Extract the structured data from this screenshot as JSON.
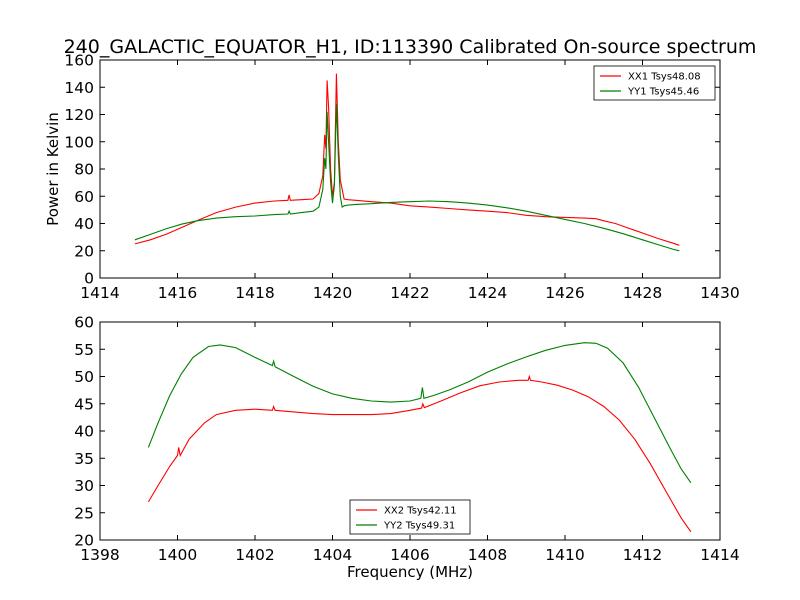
{
  "figure": {
    "title": "240_GALACTIC_EQUATOR_H1, ID:113390 Calibrated On-source spectrum"
  },
  "chart_data": [
    {
      "type": "line",
      "ylabel": "Power in Kelvin",
      "xlabel": "",
      "xlim": [
        1414,
        1430
      ],
      "ylim": [
        0,
        160
      ],
      "xticks": [
        1414,
        1416,
        1418,
        1420,
        1422,
        1424,
        1426,
        1428,
        1430
      ],
      "yticks": [
        0,
        20,
        40,
        60,
        80,
        100,
        120,
        140,
        160
      ],
      "legend_position": "top-right",
      "grid": false,
      "series": [
        {
          "name": "XX1 Tsys48.08",
          "color": "#ff0000",
          "x": [
            1414.9,
            1415.3,
            1415.7,
            1416.1,
            1416.5,
            1417.0,
            1417.5,
            1418.0,
            1418.5,
            1418.85,
            1418.88,
            1418.91,
            1419.2,
            1419.5,
            1419.65,
            1419.75,
            1419.8,
            1419.83,
            1419.86,
            1419.9,
            1419.95,
            1420.0,
            1420.05,
            1420.1,
            1420.15,
            1420.2,
            1420.25,
            1420.3,
            1420.4,
            1420.6,
            1421.0,
            1421.5,
            1422.0,
            1422.5,
            1423.0,
            1423.5,
            1424.0,
            1424.5,
            1425.0,
            1425.5,
            1426.0,
            1426.5,
            1426.8,
            1427.0,
            1427.3,
            1427.6,
            1428.0,
            1428.4,
            1428.8,
            1428.95
          ],
          "y": [
            25,
            28,
            32,
            37,
            42,
            48,
            52,
            55,
            56.5,
            57,
            61,
            57,
            57.5,
            58,
            62,
            75,
            105,
            95,
            145,
            125,
            80,
            60,
            70,
            150,
            100,
            72,
            65,
            58,
            57.5,
            57,
            56,
            55,
            53,
            52,
            51,
            50,
            49,
            48,
            46,
            45,
            44.5,
            44,
            43.5,
            42,
            40,
            37,
            33,
            29,
            25.5,
            24
          ]
        },
        {
          "name": "YY1 Tsys45.46",
          "color": "#008000",
          "x": [
            1414.9,
            1415.3,
            1415.7,
            1416.1,
            1416.5,
            1417.0,
            1417.5,
            1418.0,
            1418.5,
            1418.85,
            1418.88,
            1418.91,
            1419.2,
            1419.5,
            1419.65,
            1419.75,
            1419.8,
            1419.83,
            1419.86,
            1419.9,
            1419.95,
            1420.0,
            1420.05,
            1420.1,
            1420.15,
            1420.2,
            1420.25,
            1420.3,
            1420.4,
            1420.6,
            1421.0,
            1421.5,
            1422.0,
            1422.5,
            1423.0,
            1423.5,
            1424.0,
            1424.5,
            1425.0,
            1425.5,
            1426.0,
            1426.5,
            1427.0,
            1427.5,
            1428.0,
            1428.4,
            1428.8,
            1428.95
          ],
          "y": [
            28,
            32,
            36,
            39.5,
            42,
            44,
            45,
            45.5,
            46.5,
            47,
            49,
            47,
            48,
            49,
            52,
            65,
            88,
            80,
            122,
            100,
            70,
            55,
            68,
            128,
            90,
            60,
            52,
            53,
            53.5,
            54,
            54.5,
            55.5,
            56,
            56.5,
            56,
            55,
            53.5,
            51.5,
            49,
            46,
            43,
            40,
            36.5,
            32.5,
            28,
            24.5,
            21,
            20
          ]
        }
      ]
    },
    {
      "type": "line",
      "ylabel": "",
      "xlabel": "Frequency (MHz)",
      "xlim": [
        1398,
        1414
      ],
      "ylim": [
        20,
        60
      ],
      "xticks": [
        1398,
        1400,
        1402,
        1404,
        1406,
        1408,
        1410,
        1412,
        1414
      ],
      "yticks": [
        20,
        25,
        30,
        35,
        40,
        45,
        50,
        55,
        60
      ],
      "legend_position": "bottom-center",
      "grid": false,
      "series": [
        {
          "name": "XX2 Tsys42.11",
          "color": "#ff0000",
          "x": [
            1399.25,
            1399.5,
            1399.8,
            1400.0,
            1400.03,
            1400.07,
            1400.3,
            1400.7,
            1401.0,
            1401.5,
            1402.0,
            1402.45,
            1402.48,
            1402.52,
            1403.0,
            1403.5,
            1404.0,
            1404.5,
            1405.0,
            1405.5,
            1406.0,
            1406.3,
            1406.33,
            1406.37,
            1406.8,
            1407.3,
            1407.8,
            1408.3,
            1408.8,
            1409.05,
            1409.08,
            1409.11,
            1409.4,
            1409.8,
            1410.2,
            1410.6,
            1411.0,
            1411.4,
            1411.8,
            1412.2,
            1412.6,
            1413.0,
            1413.25
          ],
          "y": [
            27,
            30,
            33.5,
            35.5,
            37,
            35.5,
            38.5,
            41.5,
            43,
            43.8,
            44,
            43.8,
            44.5,
            43.8,
            43.5,
            43.2,
            43,
            43,
            43,
            43.2,
            43.8,
            44.2,
            45,
            44.3,
            45.5,
            47,
            48.3,
            49,
            49.3,
            49.3,
            50,
            49.3,
            49,
            48.4,
            47.5,
            46.3,
            44.5,
            42,
            38.5,
            34,
            29,
            24,
            21.5
          ]
        },
        {
          "name": "YY2 Tsys49.31",
          "color": "#008000",
          "x": [
            1399.25,
            1399.5,
            1399.8,
            1400.1,
            1400.4,
            1400.8,
            1401.1,
            1401.5,
            1402.0,
            1402.45,
            1402.48,
            1402.52,
            1403.0,
            1403.5,
            1404.0,
            1404.5,
            1405.0,
            1405.5,
            1406.0,
            1406.28,
            1406.32,
            1406.36,
            1406.6,
            1407.0,
            1407.5,
            1408.0,
            1408.5,
            1409.0,
            1409.5,
            1410.0,
            1410.5,
            1410.8,
            1411.1,
            1411.5,
            1411.9,
            1412.3,
            1412.7,
            1413.0,
            1413.25
          ],
          "y": [
            37,
            41.5,
            46.5,
            50.5,
            53.5,
            55.5,
            55.8,
            55.3,
            53.5,
            52,
            52.8,
            51.8,
            50,
            48.2,
            46.8,
            46,
            45.5,
            45.3,
            45.5,
            46,
            48,
            46,
            46.5,
            47.5,
            49,
            50.8,
            52.3,
            53.6,
            54.8,
            55.7,
            56.2,
            56.1,
            55.2,
            52.5,
            48,
            42.5,
            37,
            33,
            30.5
          ]
        }
      ]
    }
  ]
}
